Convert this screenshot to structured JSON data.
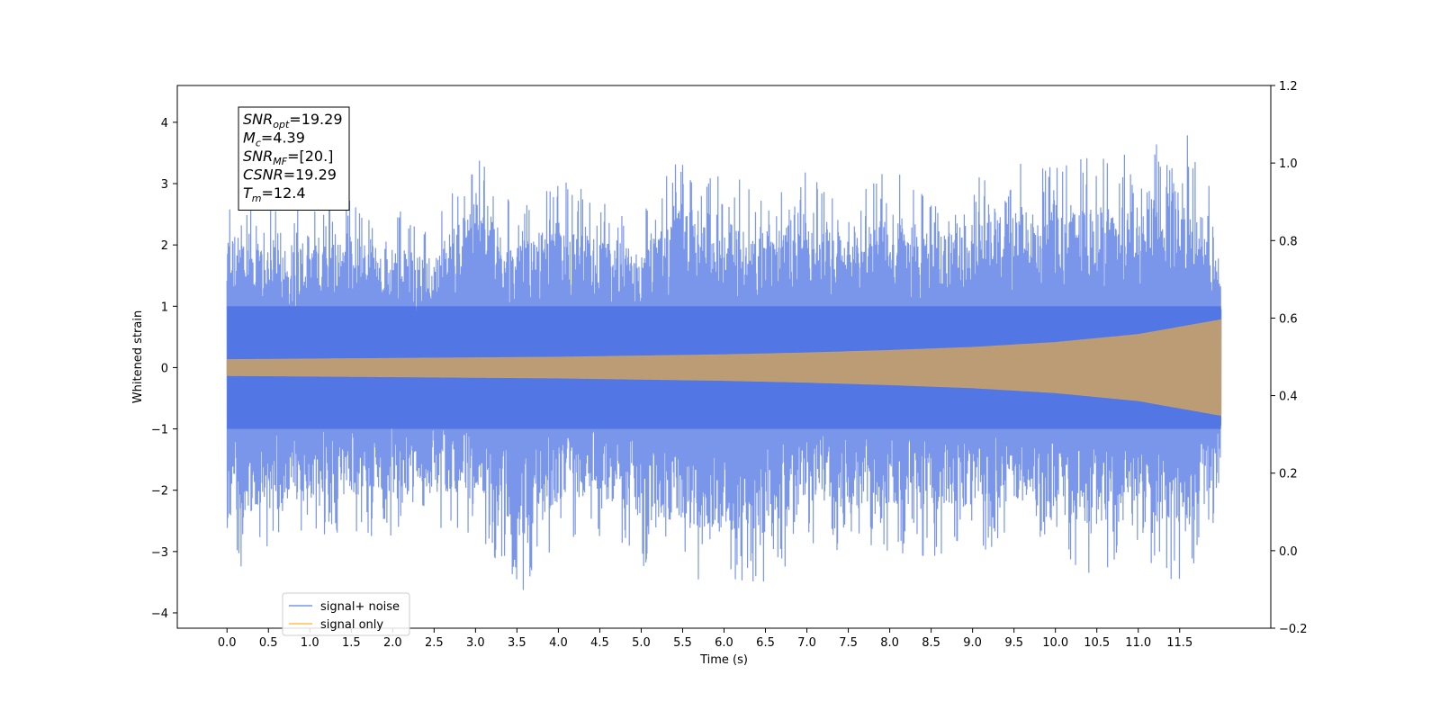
{
  "chart_data": {
    "type": "line",
    "xlabel": "Time (s)",
    "ylabel": "Whitened strain",
    "xlim": [
      -0.6,
      12.6
    ],
    "ylim": [
      -4.25,
      4.6
    ],
    "y2lim": [
      -0.2,
      1.2
    ],
    "x_ticks": [
      0.0,
      0.5,
      1.0,
      1.5,
      2.0,
      2.5,
      3.0,
      3.5,
      4.0,
      4.5,
      5.0,
      5.5,
      6.0,
      6.5,
      7.0,
      7.5,
      8.0,
      8.5,
      9.0,
      9.5,
      10.0,
      10.5,
      11.0,
      11.5
    ],
    "x_tick_labels": [
      "0.0",
      "0.5",
      "1.0",
      "1.5",
      "2.0",
      "2.5",
      "3.0",
      "3.5",
      "4.0",
      "4.5",
      "5.0",
      "5.5",
      "6.0",
      "6.5",
      "7.0",
      "7.5",
      "8.0",
      "8.5",
      "9.0",
      "9.5",
      "10.0",
      "10.5",
      "11.0",
      "11.5"
    ],
    "y_ticks": [
      4,
      3,
      2,
      1,
      0,
      -1,
      -2,
      -3,
      -4
    ],
    "y_tick_labels": [
      "4",
      "3",
      "2",
      "1",
      "0",
      "−1",
      "−2",
      "−3",
      "−4"
    ],
    "y2_ticks": [
      1.2,
      1.0,
      0.8,
      0.6,
      0.4,
      0.2,
      0.0,
      -0.2
    ],
    "y2_tick_labels": [
      "1.2",
      "1.0",
      "0.8",
      "0.6",
      "0.4",
      "0.2",
      "0.0",
      "−0.2"
    ],
    "grid": false,
    "legend_placement": "lower-left",
    "time_range": [
      0.0,
      12.0
    ],
    "series": [
      {
        "name": "signal+ noise",
        "color": "#4169e1",
        "envelope": {
          "t": [
            0.0,
            0.5,
            1.0,
            1.5,
            2.0,
            2.5,
            3.0,
            3.5,
            4.0,
            4.5,
            5.0,
            5.5,
            6.0,
            6.5,
            7.0,
            7.5,
            8.0,
            8.5,
            9.0,
            9.5,
            10.0,
            10.5,
            11.0,
            11.5,
            12.0
          ],
          "upper": [
            3.0,
            2.6,
            2.9,
            2.8,
            2.6,
            2.5,
            3.7,
            2.6,
            3.2,
            2.8,
            2.5,
            3.6,
            3.2,
            2.9,
            3.5,
            2.8,
            3.3,
            3.0,
            3.1,
            3.4,
            3.3,
            3.5,
            3.5,
            4.2,
            2.5
          ],
          "lower": [
            -3.5,
            -2.9,
            -2.9,
            -2.8,
            -2.8,
            -2.7,
            -2.7,
            -3.8,
            -2.9,
            -2.8,
            -3.3,
            -3.4,
            -3.6,
            -3.6,
            -2.9,
            -3.1,
            -3.0,
            -3.1,
            -3.0,
            -2.9,
            -3.1,
            -3.5,
            -3.0,
            -3.8,
            -2.5
          ]
        },
        "dense_band": [
          -1.0,
          1.0
        ]
      },
      {
        "name": "signal only",
        "color": "#ffa500",
        "envelope": {
          "t": [
            0.0,
            1.0,
            2.0,
            3.0,
            4.0,
            5.0,
            6.0,
            7.0,
            8.0,
            9.0,
            10.0,
            11.0,
            12.0
          ],
          "amplitude": [
            0.13,
            0.14,
            0.15,
            0.16,
            0.17,
            0.19,
            0.21,
            0.24,
            0.28,
            0.33,
            0.41,
            0.54,
            0.78
          ]
        }
      }
    ],
    "annotation": {
      "lines": [
        {
          "main": "SNR",
          "sub": "opt",
          "rest": "=19.29"
        },
        {
          "main": "M",
          "sub": "c",
          "rest": "=4.39"
        },
        {
          "main": "SNR",
          "sub": "MF",
          "rest": "=[20.]"
        },
        {
          "main": "CSNR",
          "sub": "",
          "rest": "=19.29"
        },
        {
          "main": "T",
          "sub": "m",
          "rest": "=12.4"
        }
      ]
    }
  }
}
